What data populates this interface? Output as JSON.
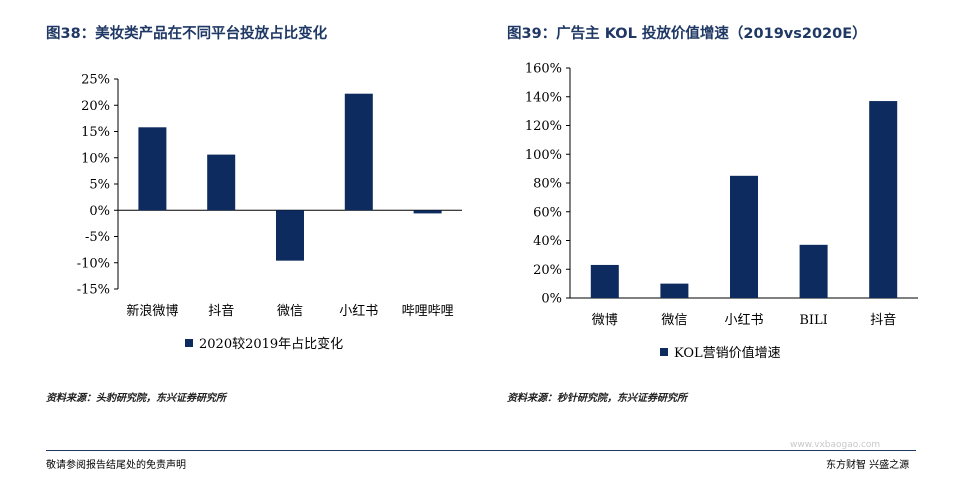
{
  "colors": {
    "bar": "#0d2b5e",
    "title": "#1f3864"
  },
  "left_title": "图38：美妆类产品在不同平台投放占比变化",
  "right_title": "图39：广告主 KOL 投放价值增速（2019vs2020E）",
  "left_source": "资料来源：头豹研究院，东兴证券研究所",
  "right_source": "资料来源：秒针研究院，东兴证券研究所",
  "footer_left": "敬请参阅报告结尾处的免责声明",
  "footer_right": "东方财智 兴盛之源",
  "watermark": "www.vxbaogao.com",
  "chart_data": [
    {
      "type": "bar",
      "categories": [
        "新浪微博",
        "抖音",
        "微信",
        "小红书",
        "哔哩哔哩"
      ],
      "series": [
        {
          "name": "2020较2019年占比变化",
          "values": [
            15.8,
            10.6,
            -9.6,
            22.2,
            -0.6
          ]
        }
      ],
      "ylim": [
        -15,
        25
      ],
      "yticks": [
        "25%",
        "20%",
        "15%",
        "10%",
        "5%",
        "0%",
        "-5%",
        "-10%",
        "-15%"
      ],
      "legend": "bottom-center"
    },
    {
      "type": "bar",
      "categories": [
        "微博",
        "微信",
        "小红书",
        "BILI",
        "抖音"
      ],
      "series": [
        {
          "name": "KOL营销价值增速",
          "values": [
            23,
            10,
            85,
            37,
            137
          ]
        }
      ],
      "ylim": [
        0,
        160
      ],
      "yticks": [
        "160%",
        "140%",
        "120%",
        "100%",
        "80%",
        "60%",
        "40%",
        "20%",
        "0%"
      ],
      "legend": "bottom-center"
    }
  ]
}
